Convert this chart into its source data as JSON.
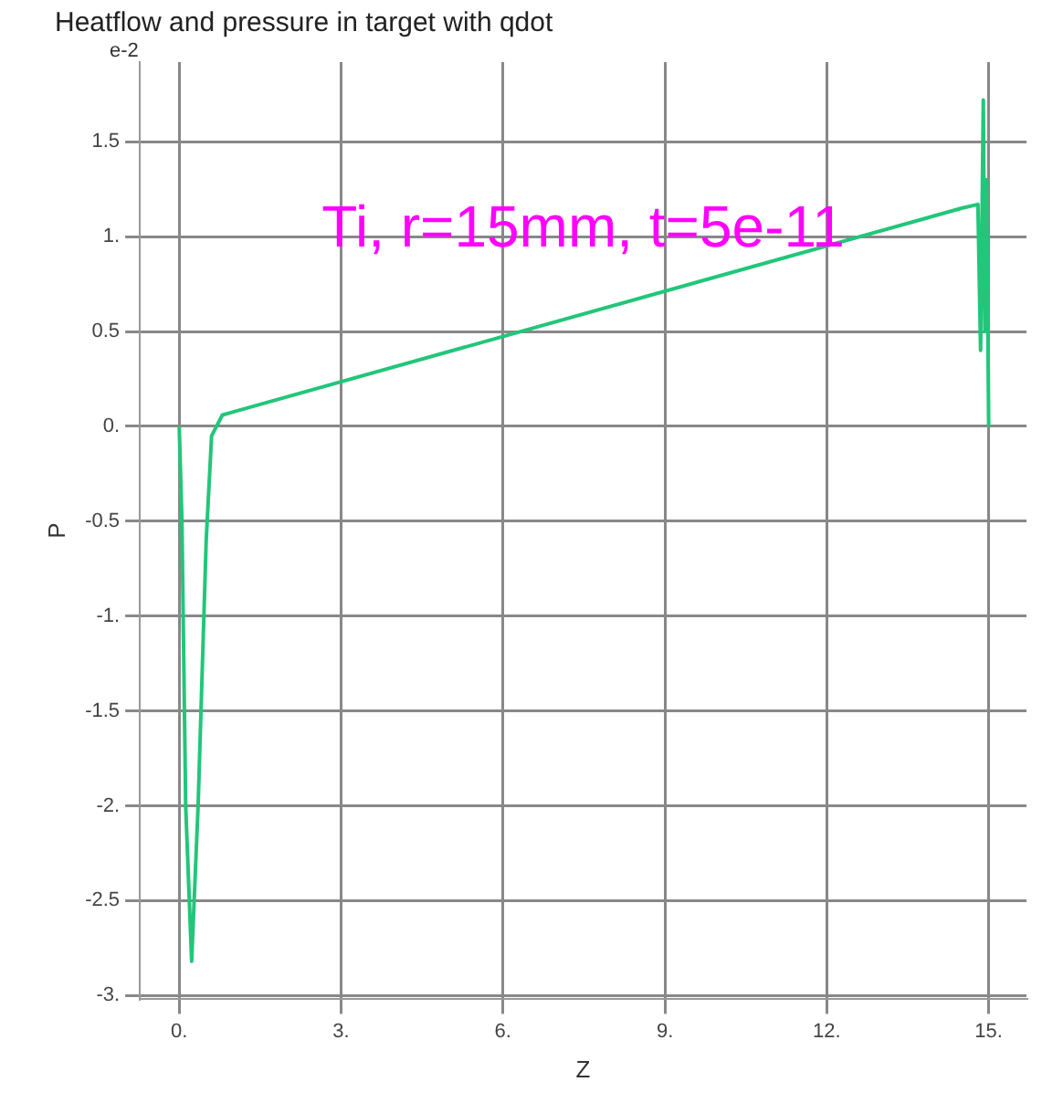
{
  "chart_data": {
    "type": "line",
    "title": "Heatflow and pressure in target with qdot",
    "xlabel": "Z",
    "ylabel": "P",
    "annotations": [
      "e-2",
      "Ti, r=15mm, t=5e-11"
    ],
    "x": [
      0,
      0.05,
      0.12,
      0.23,
      0.35,
      0.5,
      0.6,
      0.8,
      14.5,
      14.8,
      14.85,
      14.9,
      14.93,
      14.96,
      15
    ],
    "series": [
      {
        "color": "#22c67a",
        "values": [
          0,
          -0.5,
          -2,
          -2.82,
          -2,
          -0.6,
          -0.05,
          0.06,
          1.15,
          1.17,
          0.4,
          1.72,
          0.5,
          1.3,
          0
        ]
      }
    ],
    "xlim": [
      -0.73,
      15.7
    ],
    "ylim": [
      -3.02,
      1.92
    ],
    "xticks": [
      {
        "value": 0,
        "label": "0."
      },
      {
        "value": 3,
        "label": "3."
      },
      {
        "value": 6,
        "label": "6."
      },
      {
        "value": 9,
        "label": "9."
      },
      {
        "value": 12,
        "label": "12."
      },
      {
        "value": 15,
        "label": "15."
      }
    ],
    "yticks": [
      {
        "value": -3,
        "label": "-3."
      },
      {
        "value": -2.5,
        "label": "-2.5"
      },
      {
        "value": -2,
        "label": "-2."
      },
      {
        "value": -1.5,
        "label": "-1.5"
      },
      {
        "value": -1,
        "label": "-1."
      },
      {
        "value": -0.5,
        "label": "-0.5"
      },
      {
        "value": 0,
        "label": "0."
      },
      {
        "value": 0.5,
        "label": "0.5"
      },
      {
        "value": 1,
        "label": "1."
      },
      {
        "value": 1.5,
        "label": "1.5"
      }
    ],
    "grid": true,
    "legend": false,
    "marker": "none",
    "line_style": "solid"
  }
}
